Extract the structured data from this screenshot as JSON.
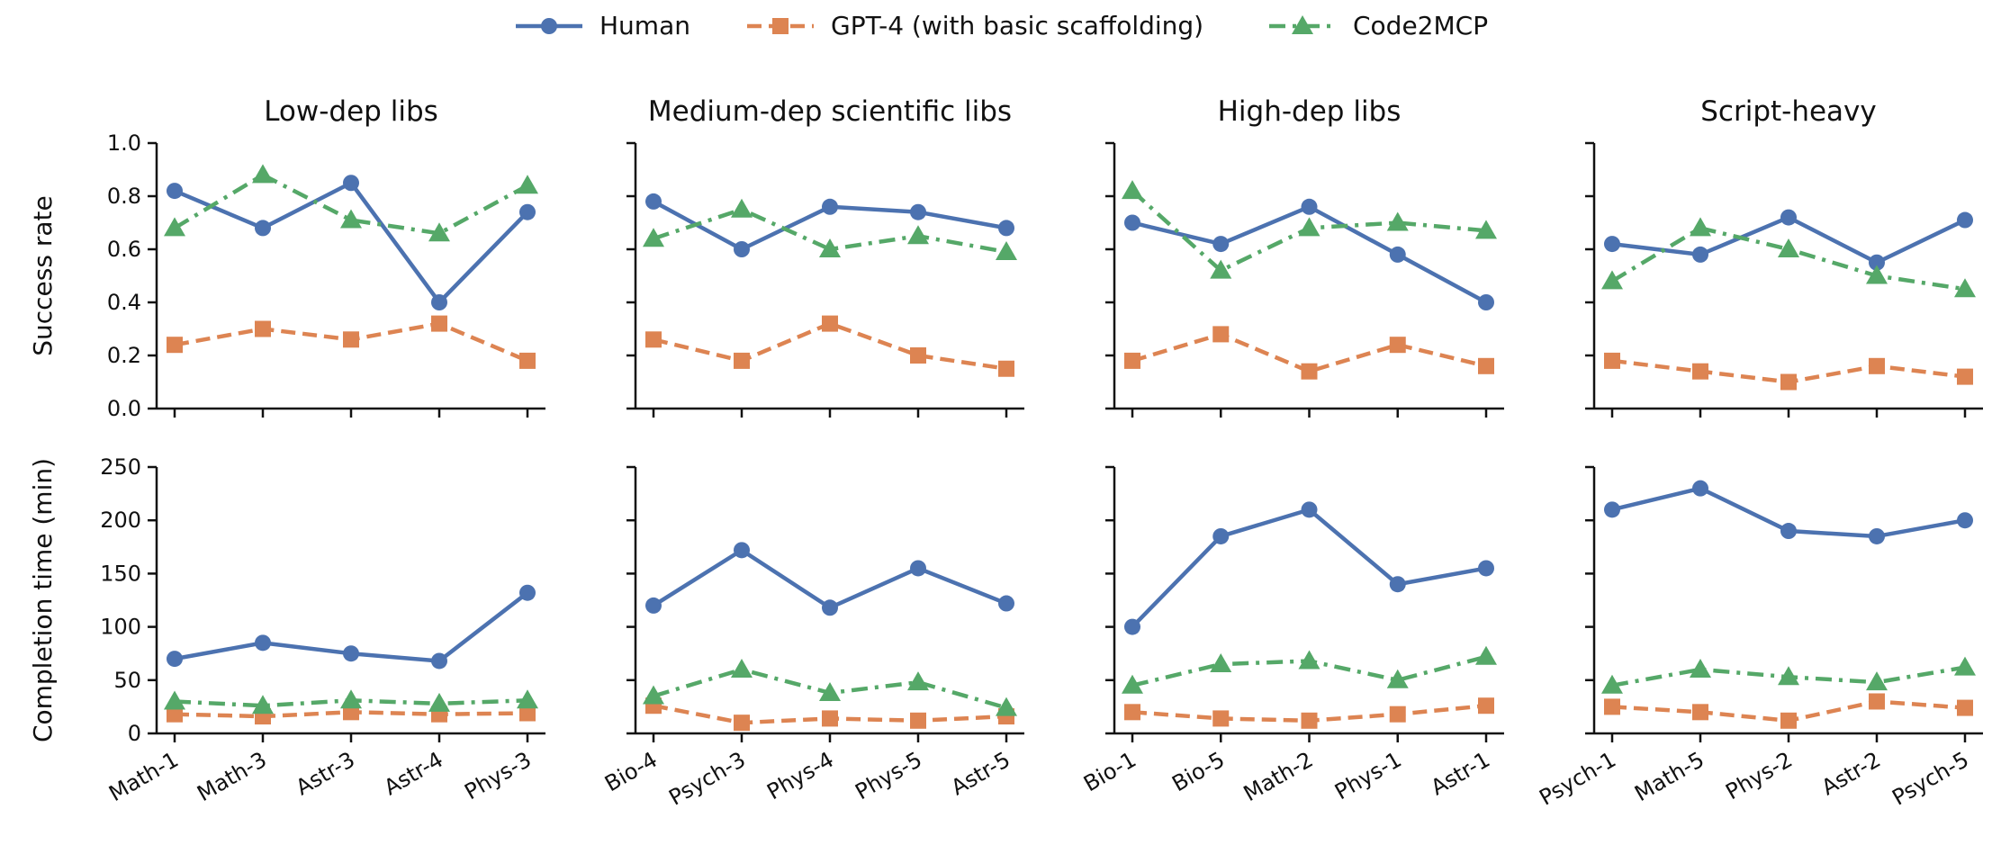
{
  "chart_data": {
    "type": "line",
    "layout": "2 rows x 4 panels, shared y-axis per row",
    "legend": {
      "placement": "top-center",
      "entries": [
        {
          "name": "Human",
          "color": "#4c72b0",
          "marker": "circle",
          "dash": "solid"
        },
        {
          "name": "GPT-4 (with basic scaffolding)",
          "color": "#dd8452",
          "marker": "square",
          "dash": "dashed"
        },
        {
          "name": "Code2MCP",
          "color": "#55a868",
          "marker": "triangle",
          "dash": "dashdot"
        }
      ]
    },
    "rows": [
      {
        "ylabel": "Success rate",
        "ylim": [
          0,
          1.0
        ],
        "yticks": [
          "0.0",
          "0.2",
          "0.4",
          "0.6",
          "0.8",
          "1.0"
        ],
        "ytick_values": [
          0,
          0.2,
          0.4,
          0.6,
          0.8,
          1.0
        ]
      },
      {
        "ylabel": "Completion time (min)",
        "ylim": [
          0,
          250
        ],
        "yticks": [
          "0",
          "50",
          "100",
          "150",
          "200",
          "250"
        ],
        "ytick_values": [
          0,
          50,
          100,
          150,
          200,
          250
        ]
      }
    ],
    "panels": [
      {
        "title": "Low-dep libs",
        "categories": [
          "Math-1",
          "Math-3",
          "Astr-3",
          "Astr-4",
          "Phys-3"
        ],
        "success": {
          "Human": [
            0.82,
            0.68,
            0.85,
            0.4,
            0.74
          ],
          "GPT-4 (with basic scaffolding)": [
            0.24,
            0.3,
            0.26,
            0.32,
            0.18
          ],
          "Code2MCP": [
            0.68,
            0.88,
            0.71,
            0.66,
            0.84
          ]
        },
        "time": {
          "Human": [
            70,
            85,
            75,
            68,
            132
          ],
          "GPT-4 (with basic scaffolding)": [
            18,
            16,
            20,
            18,
            19
          ],
          "Code2MCP": [
            30,
            26,
            31,
            28,
            31
          ]
        }
      },
      {
        "title": "Medium-dep scientific libs",
        "categories": [
          "Bio-4",
          "Psych-3",
          "Phys-4",
          "Phys-5",
          "Astr-5"
        ],
        "success": {
          "Human": [
            0.78,
            0.6,
            0.76,
            0.74,
            0.68
          ],
          "GPT-4 (with basic scaffolding)": [
            0.26,
            0.18,
            0.32,
            0.2,
            0.15
          ],
          "Code2MCP": [
            0.64,
            0.75,
            0.6,
            0.65,
            0.59
          ]
        },
        "time": {
          "Human": [
            120,
            172,
            118,
            155,
            122
          ],
          "GPT-4 (with basic scaffolding)": [
            26,
            10,
            14,
            12,
            16
          ],
          "Code2MCP": [
            35,
            60,
            38,
            48,
            24
          ]
        }
      },
      {
        "title": "High-dep libs",
        "categories": [
          "Bio-1",
          "Bio-5",
          "Math-2",
          "Phys-1",
          "Astr-1"
        ],
        "success": {
          "Human": [
            0.7,
            0.62,
            0.76,
            0.58,
            0.4
          ],
          "GPT-4 (with basic scaffolding)": [
            0.18,
            0.28,
            0.14,
            0.24,
            0.16
          ],
          "Code2MCP": [
            0.82,
            0.52,
            0.68,
            0.7,
            0.67
          ]
        },
        "time": {
          "Human": [
            100,
            185,
            210,
            140,
            155
          ],
          "GPT-4 (with basic scaffolding)": [
            20,
            14,
            12,
            18,
            26
          ],
          "Code2MCP": [
            45,
            65,
            68,
            50,
            72
          ]
        }
      },
      {
        "title": "Script-heavy",
        "categories": [
          "Psych-1",
          "Math-5",
          "Phys-2",
          "Astr-2",
          "Psych-5"
        ],
        "success": {
          "Human": [
            0.62,
            0.58,
            0.72,
            0.55,
            0.71
          ],
          "GPT-4 (with basic scaffolding)": [
            0.18,
            0.14,
            0.1,
            0.16,
            0.12
          ],
          "Code2MCP": [
            0.48,
            0.68,
            0.6,
            0.5,
            0.45
          ]
        },
        "time": {
          "Human": [
            210,
            230,
            190,
            185,
            200
          ],
          "GPT-4 (with basic scaffolding)": [
            25,
            20,
            12,
            30,
            24
          ],
          "Code2MCP": [
            45,
            60,
            53,
            48,
            62
          ]
        }
      }
    ]
  }
}
